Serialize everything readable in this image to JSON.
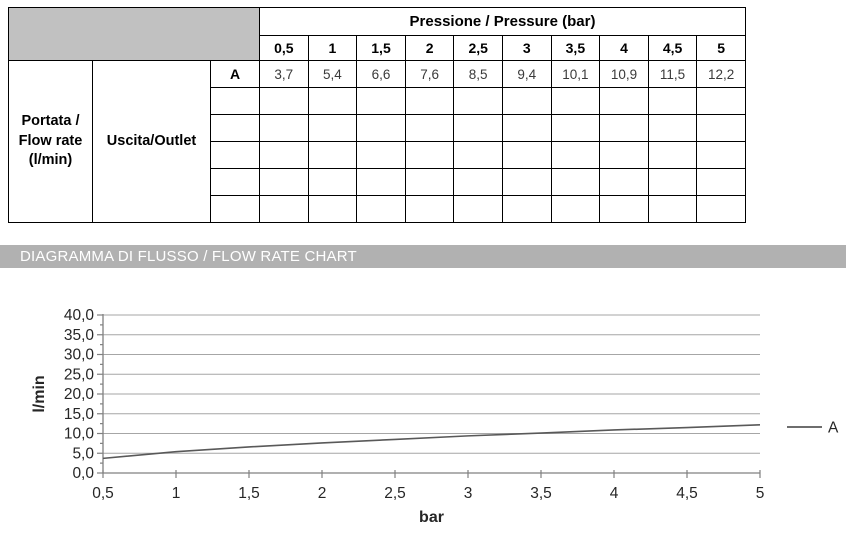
{
  "table": {
    "pressure_header": "Pressione / Pressure (bar)",
    "pressure_columns": [
      "0,5",
      "1",
      "1,5",
      "2",
      "2,5",
      "3",
      "3,5",
      "4",
      "4,5",
      "5"
    ],
    "row_header_1": "Portata / Flow rate (l/min)",
    "row_header_2": "Uscita/Outlet",
    "rows": [
      {
        "label": "A",
        "values": [
          "3,7",
          "5,4",
          "6,6",
          "7,6",
          "8,5",
          "9,4",
          "10,1",
          "10,9",
          "11,5",
          "12,2"
        ]
      },
      {
        "label": "",
        "values": [
          "",
          "",
          "",
          "",
          "",
          "",
          "",
          "",
          "",
          ""
        ]
      },
      {
        "label": "",
        "values": [
          "",
          "",
          "",
          "",
          "",
          "",
          "",
          "",
          "",
          ""
        ]
      },
      {
        "label": "",
        "values": [
          "",
          "",
          "",
          "",
          "",
          "",
          "",
          "",
          "",
          ""
        ]
      },
      {
        "label": "",
        "values": [
          "",
          "",
          "",
          "",
          "",
          "",
          "",
          "",
          "",
          ""
        ]
      },
      {
        "label": "",
        "values": [
          "",
          "",
          "",
          "",
          "",
          "",
          "",
          "",
          "",
          ""
        ]
      }
    ],
    "corner_background": "#c1c1c1"
  },
  "banner": {
    "title": "DIAGRAMMA DI FLUSSO / FLOW RATE CHART",
    "background": "#b1b1b1",
    "text_color": "#ffffff"
  },
  "chart_data": {
    "type": "line",
    "title": "",
    "xlabel": "bar",
    "ylabel": "l/min",
    "x": [
      0.5,
      1,
      1.5,
      2,
      2.5,
      3,
      3.5,
      4,
      4.5,
      5
    ],
    "x_tick_labels": [
      "0,5",
      "1",
      "1,5",
      "2",
      "2,5",
      "3",
      "3,5",
      "4",
      "4,5",
      "5"
    ],
    "series": [
      {
        "name": "A",
        "values": [
          3.7,
          5.4,
          6.6,
          7.6,
          8.5,
          9.4,
          10.1,
          10.9,
          11.5,
          12.2
        ],
        "color": "#595959"
      }
    ],
    "ylim": [
      0,
      40
    ],
    "y_tick_step": 5,
    "y_minor_tick_step": 2.5,
    "y_tick_labels": [
      "0,0",
      "5,0",
      "10,0",
      "15,0",
      "20,0",
      "25,0",
      "30,0",
      "35,0",
      "40,0"
    ],
    "grid": "horizontal",
    "gridline_color": "#a6a6a6",
    "axis_color": "#808080",
    "tick_label_color": "#262626",
    "legend_position": "right"
  }
}
